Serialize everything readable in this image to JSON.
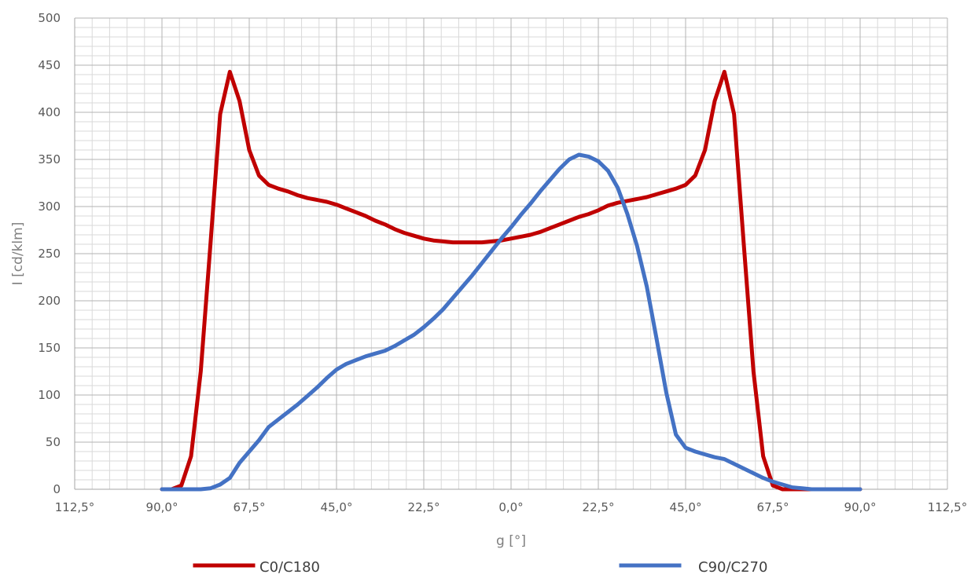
{
  "chart_data": {
    "type": "line",
    "title": "",
    "xlabel": "g [°]",
    "ylabel": "I [cd/klm]",
    "xlim": [
      -112.5,
      112.5
    ],
    "ylim": [
      0,
      500
    ],
    "x_ticks": [
      -112.5,
      -90,
      -67.5,
      -45,
      -22.5,
      0,
      22.5,
      45,
      67.5,
      90,
      112.5
    ],
    "x_tick_labels": [
      "112,5°",
      "90,0°",
      "67,5°",
      "45,0°",
      "22,5°",
      "0,0°",
      "22,5°",
      "45,0°",
      "67,5°",
      "90,0°",
      "112,5°"
    ],
    "y_ticks": [
      0,
      50,
      100,
      150,
      200,
      250,
      300,
      350,
      400,
      450,
      500
    ],
    "y_tick_labels": [
      "0",
      "50",
      "100",
      "150",
      "200",
      "250",
      "300",
      "350",
      "400",
      "450",
      "500"
    ],
    "grid": true,
    "legend_position": "bottom",
    "series": [
      {
        "name": "C0/C180",
        "color": "#c00000",
        "x": [
          -90,
          -87.5,
          -85,
          -82.5,
          -80,
          -77.5,
          -75,
          -72.5,
          -70,
          -67.5,
          -65,
          -62.5,
          -60,
          -57.5,
          -55,
          -52.5,
          -50,
          -47.5,
          -45,
          -42.5,
          -40,
          -37.5,
          -35,
          -32.5,
          -30,
          -27.5,
          -25,
          -22.5,
          -20,
          -17.5,
          -15,
          -12.5,
          -10,
          -7.5,
          -5,
          -2.5,
          0,
          2.5,
          5,
          7.5,
          10,
          12.5,
          15,
          17.5,
          20,
          22.5,
          25,
          27.5,
          30,
          32.5,
          35,
          37.5,
          40,
          42.5,
          45,
          47.5,
          50,
          52.5,
          55,
          57.5,
          60,
          62.5,
          65,
          67.5,
          70,
          72.5,
          75,
          77.5,
          80,
          82.5,
          85,
          87.5,
          90
        ],
        "y": [
          0,
          0,
          4,
          35,
          125,
          260,
          398,
          443,
          412,
          360,
          333,
          323,
          319,
          316,
          312,
          309,
          307,
          305,
          302,
          298,
          294,
          290,
          285,
          281,
          276,
          272,
          269,
          266,
          264,
          263,
          262,
          262,
          262,
          262,
          263,
          264,
          266,
          268,
          270,
          273,
          277,
          281,
          285,
          289,
          292,
          296,
          301,
          304,
          306,
          308,
          310,
          313,
          316,
          319,
          323,
          333,
          360,
          412,
          443,
          398,
          260,
          125,
          35,
          4,
          0,
          0,
          0,
          0,
          0,
          0,
          0,
          0,
          0
        ]
      },
      {
        "name": "C90/C270",
        "color": "#4472c4",
        "x": [
          -90,
          -87.5,
          -85,
          -82.5,
          -80,
          -77.5,
          -75,
          -72.5,
          -70,
          -67.5,
          -65,
          -62.5,
          -60,
          -57.5,
          -55,
          -52.5,
          -50,
          -47.5,
          -45,
          -42.5,
          -40,
          -37.5,
          -35,
          -32.5,
          -30,
          -27.5,
          -25,
          -22.5,
          -20,
          -17.5,
          -15,
          -12.5,
          -10,
          -7.5,
          -5,
          -2.5,
          0,
          2.5,
          5,
          7.5,
          10,
          12.5,
          15,
          17.5,
          20,
          22.5,
          25,
          27.5,
          30,
          32.5,
          35,
          37.5,
          40,
          42.5,
          45,
          47.5,
          50,
          52.5,
          55,
          57.5,
          60,
          62.5,
          65,
          67.5,
          70,
          72.5,
          75,
          77.5,
          80,
          82.5,
          85,
          87.5,
          90
        ],
        "y": [
          0,
          0,
          0,
          0,
          0,
          1,
          5,
          12,
          28,
          40,
          52,
          66,
          74,
          82,
          90,
          99,
          108,
          118,
          127,
          133,
          137,
          141,
          144,
          147,
          152,
          158,
          164,
          172,
          181,
          191,
          203,
          215,
          227,
          240,
          253,
          266,
          278,
          291,
          303,
          316,
          328,
          340,
          350,
          355,
          353,
          348,
          338,
          320,
          292,
          258,
          215,
          160,
          103,
          58,
          44,
          40,
          37,
          34,
          32,
          27,
          22,
          17,
          12,
          8,
          5,
          2,
          1,
          0,
          0,
          0,
          0,
          0,
          0
        ]
      }
    ]
  }
}
